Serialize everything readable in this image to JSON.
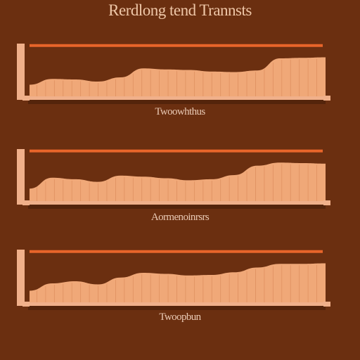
{
  "title": "Rerdlong tend Trannsts",
  "colors": {
    "background": "#6b2f10",
    "area_fill": "#f0a878",
    "area_stripe": "#d88656",
    "top_line": "#e8652a",
    "axis": "#f0b08a",
    "baseline_shadow": "#4a1f0a"
  },
  "chart_data": [
    {
      "type": "area",
      "label": "Twoowhthus",
      "values": [
        0.22,
        0.33,
        0.32,
        0.28,
        0.36,
        0.53,
        0.51,
        0.5,
        0.47,
        0.46,
        0.49,
        0.72,
        0.73,
        0.74
      ],
      "reference_line": 0.95
    },
    {
      "type": "area",
      "label": "Aormenoinrsrs",
      "values": [
        0.24,
        0.45,
        0.42,
        0.37,
        0.49,
        0.47,
        0.44,
        0.4,
        0.42,
        0.5,
        0.68,
        0.74,
        0.73,
        0.72
      ],
      "reference_line": 0.95
    },
    {
      "type": "area",
      "label": "Twoopbun",
      "values": [
        0.22,
        0.36,
        0.4,
        0.34,
        0.47,
        0.56,
        0.54,
        0.51,
        0.52,
        0.57,
        0.66,
        0.73,
        0.73,
        0.74
      ],
      "reference_line": 0.95
    }
  ]
}
